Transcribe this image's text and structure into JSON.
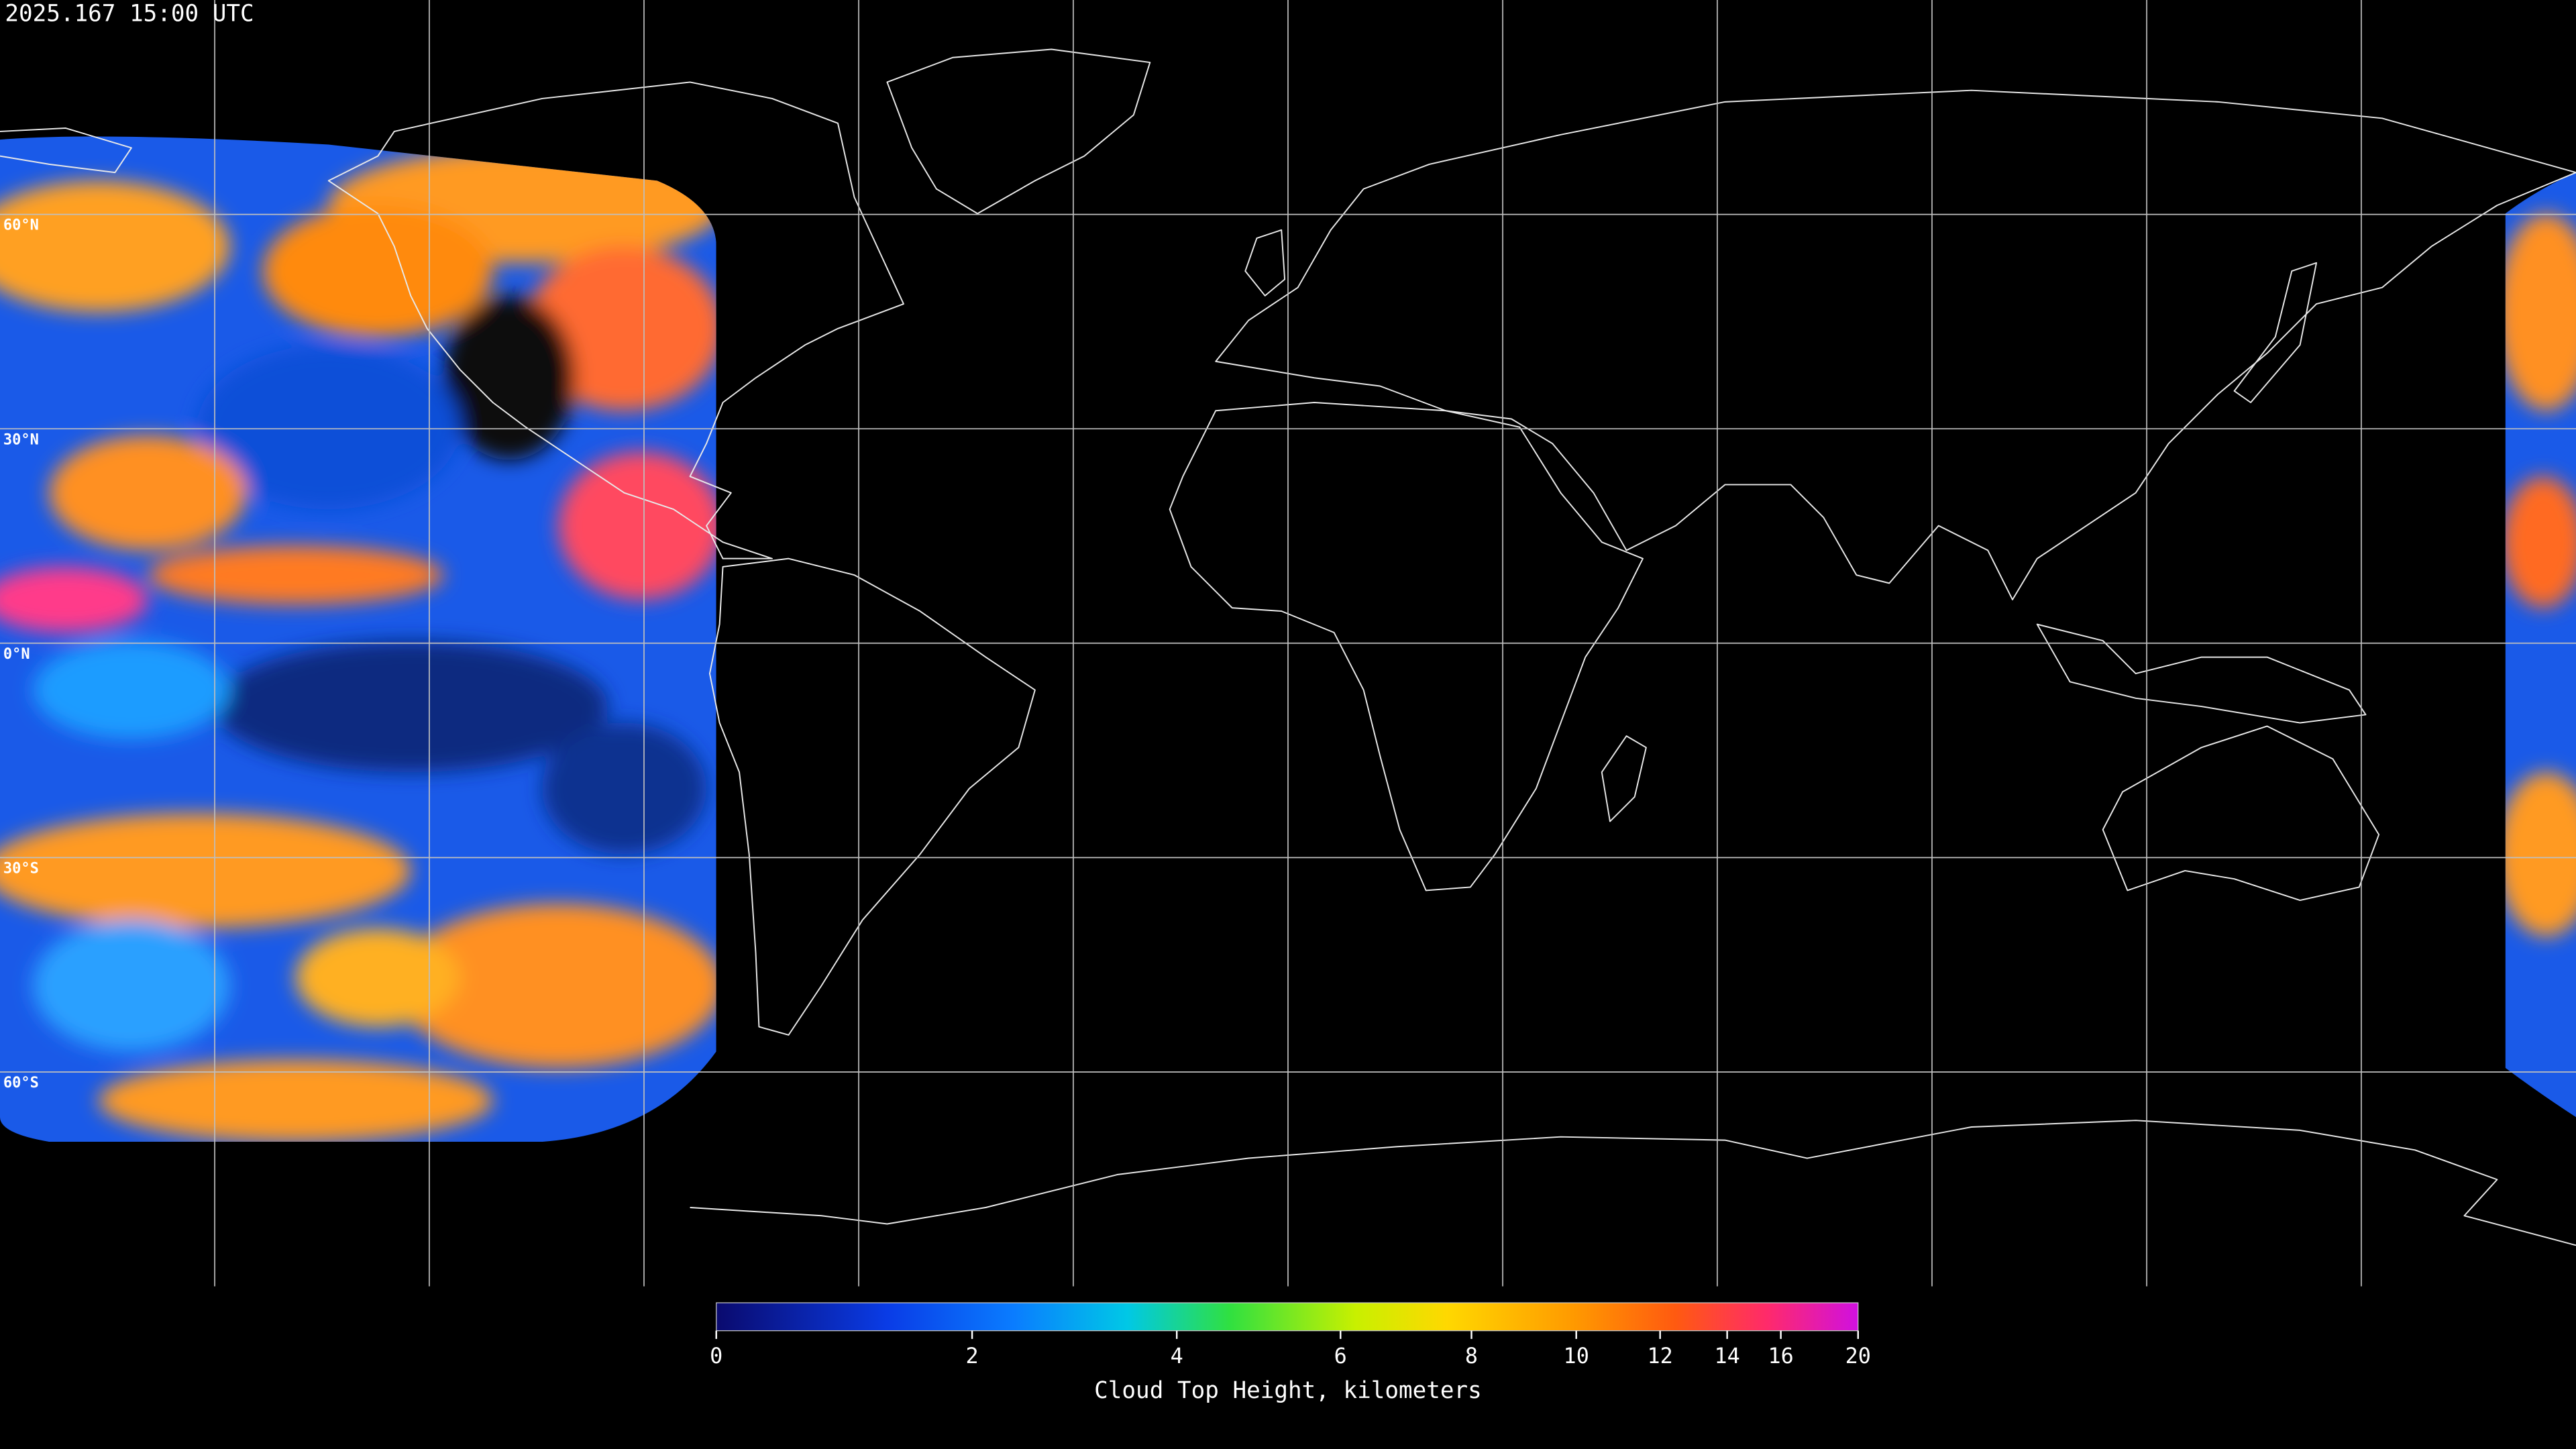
{
  "header": {
    "timestamp": "2025.167 15:00 UTC"
  },
  "map": {
    "lat_labels": [
      {
        "value": 60,
        "label": "60°N"
      },
      {
        "value": 30,
        "label": "30°N"
      },
      {
        "value": 0,
        "label": "0°N"
      },
      {
        "value": -30,
        "label": "30°S"
      },
      {
        "value": -60,
        "label": "60°S"
      }
    ]
  },
  "colorbar": {
    "title": "Cloud Top Height, kilometers",
    "lim": [
      0,
      20
    ],
    "ticks": [
      0,
      2,
      4,
      6,
      8,
      10,
      12,
      14,
      16,
      20
    ]
  }
}
